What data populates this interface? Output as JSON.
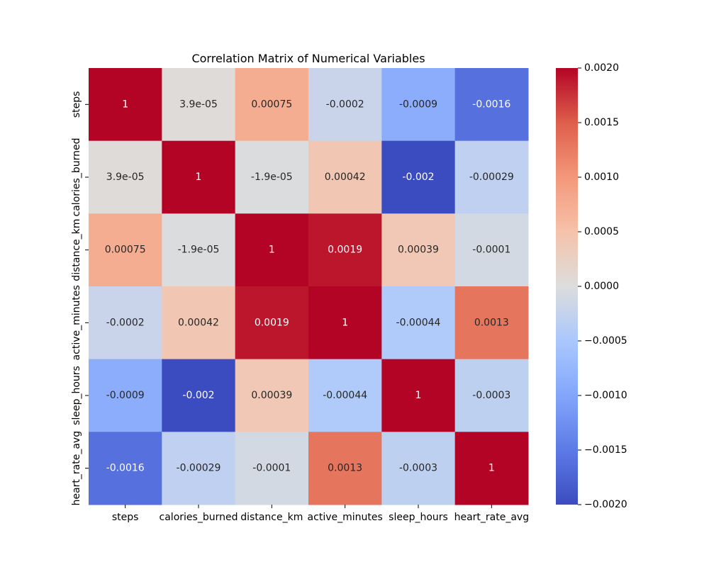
{
  "chart_data": {
    "type": "heatmap",
    "title": "Correlation Matrix of Numerical Variables",
    "xlabel": "",
    "ylabel": "",
    "row_labels": [
      "steps",
      "calories_burned",
      "distance_km",
      "active_minutes",
      "sleep_hours",
      "heart_rate_avg"
    ],
    "col_labels": [
      "steps",
      "calories_burned",
      "distance_km",
      "active_minutes",
      "sleep_hours",
      "heart_rate_avg"
    ],
    "values": [
      [
        1,
        3.9e-05,
        0.00075,
        -0.0002,
        -0.0009,
        -0.0016
      ],
      [
        3.9e-05,
        1,
        -1.9e-05,
        0.00042,
        -0.002,
        -0.00029
      ],
      [
        0.00075,
        -1.9e-05,
        1,
        0.0019,
        0.00039,
        -0.0001
      ],
      [
        -0.0002,
        0.00042,
        0.0019,
        1,
        -0.00044,
        0.0013
      ],
      [
        -0.0009,
        -0.002,
        0.00039,
        -0.00044,
        1,
        -0.0003
      ],
      [
        -0.0016,
        -0.00029,
        -0.0001,
        0.0013,
        -0.0003,
        1
      ]
    ],
    "annotations": [
      [
        "1",
        "3.9e-05",
        "0.00075",
        "-0.0002",
        "-0.0009",
        "-0.0016"
      ],
      [
        "3.9e-05",
        "1",
        "-1.9e-05",
        "0.00042",
        "-0.002",
        "-0.00029"
      ],
      [
        "0.00075",
        "-1.9e-05",
        "1",
        "0.0019",
        "0.00039",
        "-0.0001"
      ],
      [
        "-0.0002",
        "0.00042",
        "0.0019",
        "1",
        "-0.00044",
        "0.0013"
      ],
      [
        "-0.0009",
        "-0.002",
        "0.00039",
        "-0.00044",
        "1",
        "-0.0003"
      ],
      [
        "-0.0016",
        "-0.00029",
        "-0.0001",
        "0.0013",
        "-0.0003",
        "1"
      ]
    ],
    "colorbar": {
      "vmin": -0.002,
      "vmax": 0.002,
      "colormap": "coolwarm",
      "ticks": [
        0.002,
        0.0015,
        0.001,
        0.0005,
        0,
        -0.0005,
        -0.001,
        -0.0015,
        -0.002
      ],
      "tick_labels": [
        "0.0020",
        "0.0015",
        "0.0010",
        "0.0005",
        "0.0000",
        "−0.0005",
        "−0.0010",
        "−0.0015",
        "−0.0020"
      ]
    },
    "grid": false,
    "legend": "right"
  }
}
